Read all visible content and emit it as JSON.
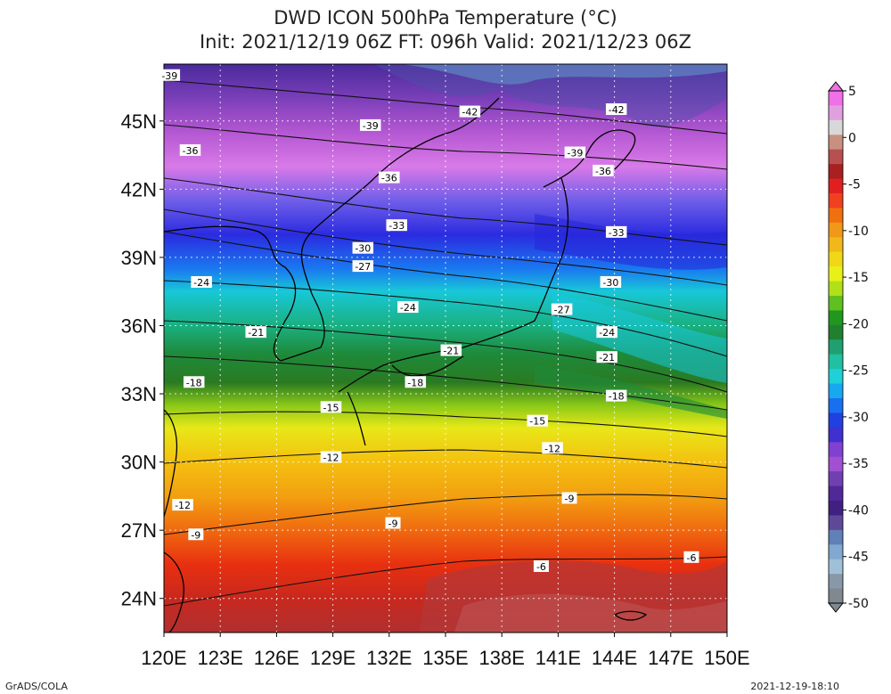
{
  "title": {
    "line1": "DWD ICON 500hPa Temperature (°C)",
    "line2": "Init: 2021/12/19 06Z  FT: 096h  Valid: 2021/12/23 06Z"
  },
  "map": {
    "lon_range": [
      120,
      150
    ],
    "lat_range": [
      22.5,
      47.5
    ],
    "lon_ticks": [
      "120E",
      "123E",
      "126E",
      "129E",
      "132E",
      "135E",
      "138E",
      "141E",
      "144E",
      "147E",
      "150E"
    ],
    "lat_ticks": [
      "24N",
      "27N",
      "30N",
      "33N",
      "36N",
      "39N",
      "42N",
      "45N"
    ],
    "grid_lines": true,
    "contour_labels": [
      {
        "text": "-39",
        "lon": 120.3,
        "lat": 47.0
      },
      {
        "text": "-39",
        "lon": 131.0,
        "lat": 44.8
      },
      {
        "text": "-42",
        "lon": 136.3,
        "lat": 45.4
      },
      {
        "text": "-42",
        "lon": 144.1,
        "lat": 45.5
      },
      {
        "text": "-36",
        "lon": 121.4,
        "lat": 43.7
      },
      {
        "text": "-39",
        "lon": 141.9,
        "lat": 43.6
      },
      {
        "text": "-36",
        "lon": 132.0,
        "lat": 42.5
      },
      {
        "text": "-36",
        "lon": 143.4,
        "lat": 42.8
      },
      {
        "text": "-33",
        "lon": 132.4,
        "lat": 40.4
      },
      {
        "text": "-33",
        "lon": 144.1,
        "lat": 40.1
      },
      {
        "text": "-30",
        "lon": 130.6,
        "lat": 39.4
      },
      {
        "text": "-27",
        "lon": 130.6,
        "lat": 38.6
      },
      {
        "text": "-24",
        "lon": 122.0,
        "lat": 37.9
      },
      {
        "text": "-30",
        "lon": 143.8,
        "lat": 37.9
      },
      {
        "text": "-24",
        "lon": 133.0,
        "lat": 36.8
      },
      {
        "text": "-27",
        "lon": 141.2,
        "lat": 36.7
      },
      {
        "text": "-21",
        "lon": 124.9,
        "lat": 35.7
      },
      {
        "text": "-24",
        "lon": 143.6,
        "lat": 35.7
      },
      {
        "text": "-21",
        "lon": 135.3,
        "lat": 34.9
      },
      {
        "text": "-21",
        "lon": 143.6,
        "lat": 34.6
      },
      {
        "text": "-18",
        "lon": 121.6,
        "lat": 33.5
      },
      {
        "text": "-18",
        "lon": 133.4,
        "lat": 33.5
      },
      {
        "text": "-18",
        "lon": 144.1,
        "lat": 32.9
      },
      {
        "text": "-15",
        "lon": 128.9,
        "lat": 32.4
      },
      {
        "text": "-15",
        "lon": 139.9,
        "lat": 31.8
      },
      {
        "text": "-12",
        "lon": 128.9,
        "lat": 30.2
      },
      {
        "text": "-12",
        "lon": 140.7,
        "lat": 30.6
      },
      {
        "text": "-12",
        "lon": 121.0,
        "lat": 28.1
      },
      {
        "text": "-9",
        "lon": 141.6,
        "lat": 28.4
      },
      {
        "text": "-9",
        "lon": 132.2,
        "lat": 27.3
      },
      {
        "text": "-9",
        "lon": 121.7,
        "lat": 26.8
      },
      {
        "text": "-6",
        "lon": 140.1,
        "lat": 25.4
      },
      {
        "text": "-6",
        "lon": 148.1,
        "lat": 25.8
      }
    ]
  },
  "colorbar": {
    "labels": [
      "5",
      "0",
      "-5",
      "-10",
      "-15",
      "-20",
      "-25",
      "-30",
      "-35",
      "-40",
      "-45",
      "-50"
    ],
    "min": -50,
    "max": 5
  },
  "footer": {
    "credit": "GrADS/COLA",
    "timestamp": "2021-12-19-18:10"
  }
}
